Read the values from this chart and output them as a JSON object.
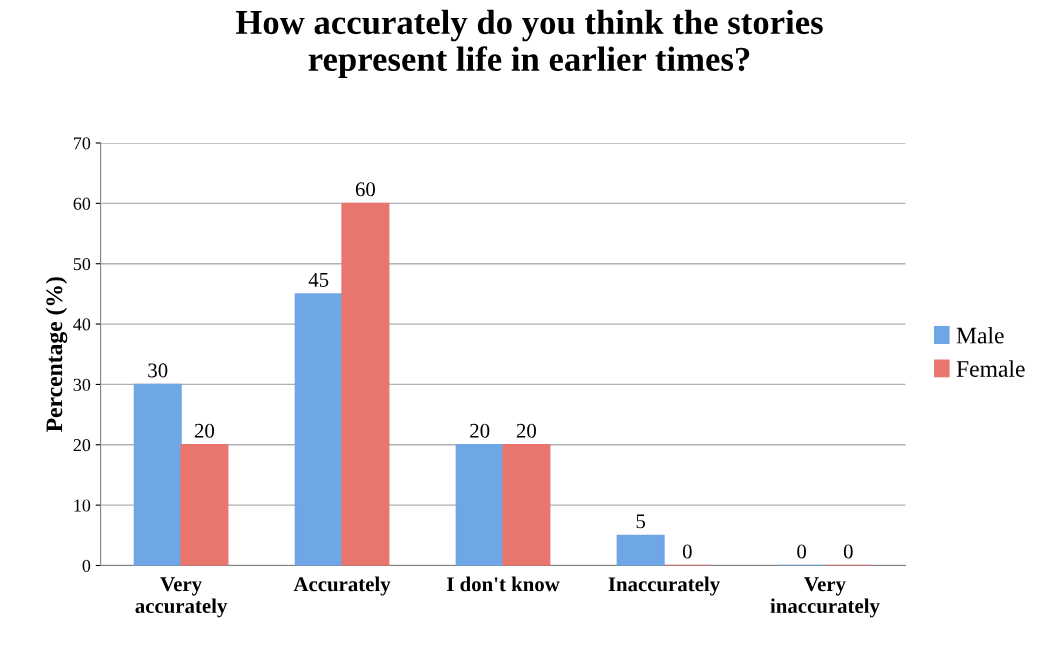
{
  "chart_data": {
    "type": "bar",
    "title": "How accurately do you think the stories\nrepresent life in earlier times?",
    "ylabel": "Percentage (%)",
    "categories": [
      "Very\naccurately",
      "Accurately",
      "I don't know",
      "Inaccurately",
      "Very\ninaccurately"
    ],
    "series": [
      {
        "name": "Male",
        "color": "#6fa6e6",
        "values": [
          30,
          45,
          20,
          5,
          0
        ]
      },
      {
        "name": "Female",
        "color": "#e9756f",
        "values": [
          20,
          60,
          20,
          0,
          0
        ]
      }
    ],
    "ylim": [
      0,
      70
    ],
    "yticks": [
      0,
      10,
      20,
      30,
      40,
      50,
      60,
      70
    ],
    "grid": "y",
    "legend": "right",
    "data_labels": true
  }
}
